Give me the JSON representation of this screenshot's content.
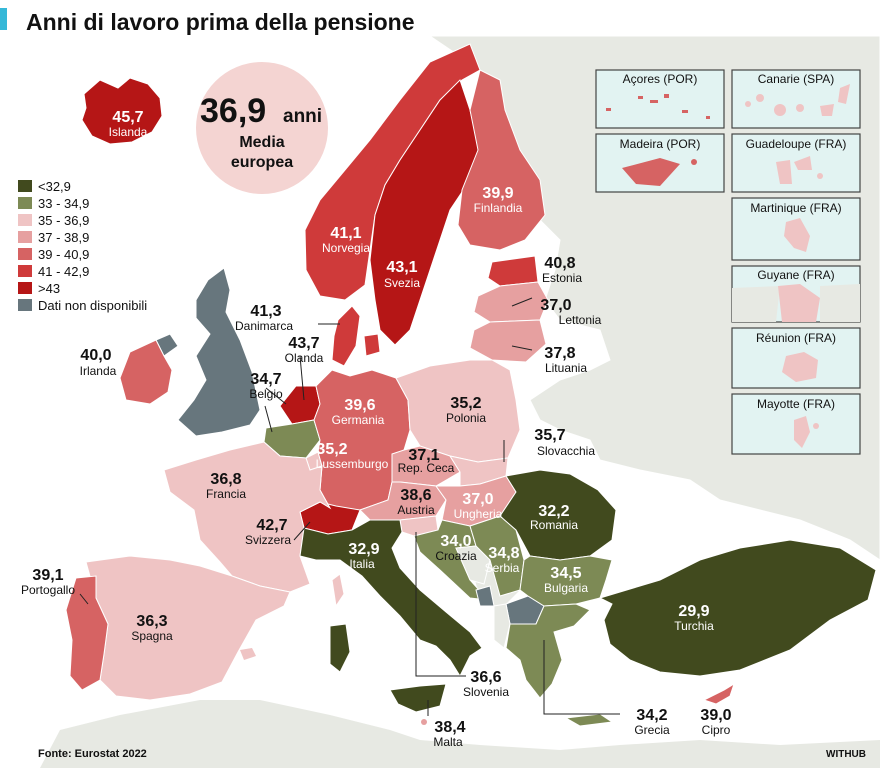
{
  "title": "Anni di lavoro prima della pensione",
  "average": {
    "value": "36,9",
    "unit": "anni",
    "label_line1": "Media",
    "label_line2": "europea"
  },
  "legend": [
    {
      "label": "<32,9",
      "color": "#414a1e"
    },
    {
      "label": "33 - 34,9",
      "color": "#7d8a55"
    },
    {
      "label": "35 - 36,9",
      "color": "#efc4c4"
    },
    {
      "label": "37 - 38,9",
      "color": "#e6a0a0"
    },
    {
      "label": "39 - 40,9",
      "color": "#d66363"
    },
    {
      "label": "41 - 42,9",
      "color": "#cf3a3a"
    },
    {
      "label": ">43",
      "color": "#b51616"
    },
    {
      "label": "Dati non disponibili",
      "color": "#67767d"
    }
  ],
  "countries": [
    {
      "id": "islanda",
      "name": "Islanda",
      "value": "45,7"
    },
    {
      "id": "norvegia",
      "name": "Norvegia",
      "value": "41,1"
    },
    {
      "id": "svezia",
      "name": "Svezia",
      "value": "43,1"
    },
    {
      "id": "finlandia",
      "name": "Finlandia",
      "value": "39,9"
    },
    {
      "id": "estonia",
      "name": "Estonia",
      "value": "40,8"
    },
    {
      "id": "lettonia",
      "name": "Lettonia",
      "value": "37,0"
    },
    {
      "id": "lituania",
      "name": "Lituania",
      "value": "37,8"
    },
    {
      "id": "danimarca",
      "name": "Danimarca",
      "value": "41,3"
    },
    {
      "id": "irlanda",
      "name": "Irlanda",
      "value": "40,0"
    },
    {
      "id": "olanda",
      "name": "Olanda",
      "value": "43,7"
    },
    {
      "id": "belgio",
      "name": "Belgio",
      "value": "34,7"
    },
    {
      "id": "germania",
      "name": "Germania",
      "value": "39,6"
    },
    {
      "id": "polonia",
      "name": "Polonia",
      "value": "35,2"
    },
    {
      "id": "lussemburgo",
      "name": "Lussemburgo",
      "value": "35,2"
    },
    {
      "id": "rep-ceca",
      "name": "Rep. Ceca",
      "value": "37,1"
    },
    {
      "id": "slovacchia",
      "name": "Slovacchia",
      "value": "35,7"
    },
    {
      "id": "francia",
      "name": "Francia",
      "value": "36,8"
    },
    {
      "id": "austria",
      "name": "Austria",
      "value": "38,6"
    },
    {
      "id": "ungheria",
      "name": "Ungheria",
      "value": "37,0"
    },
    {
      "id": "romania",
      "name": "Romania",
      "value": "32,2"
    },
    {
      "id": "svizzera",
      "name": "Svizzera",
      "value": "42,7"
    },
    {
      "id": "italia",
      "name": "Italia",
      "value": "32,9"
    },
    {
      "id": "croazia",
      "name": "Croazia",
      "value": "34,0"
    },
    {
      "id": "serbia",
      "name": "Serbia",
      "value": "34,8"
    },
    {
      "id": "bulgaria",
      "name": "Bulgaria",
      "value": "34,5"
    },
    {
      "id": "portogallo",
      "name": "Portogallo",
      "value": "39,1"
    },
    {
      "id": "spagna",
      "name": "Spagna",
      "value": "36,3"
    },
    {
      "id": "turchia",
      "name": "Turchia",
      "value": "29,9"
    },
    {
      "id": "slovenia",
      "name": "Slovenia",
      "value": "36,6"
    },
    {
      "id": "grecia",
      "name": "Grecia",
      "value": "34,2"
    },
    {
      "id": "cipro",
      "name": "Cipro",
      "value": "39,0"
    },
    {
      "id": "malta",
      "name": "Malta",
      "value": "38,4"
    }
  ],
  "insets": [
    {
      "id": "acores",
      "name": "Açores (POR)"
    },
    {
      "id": "canarie",
      "name": "Canarie (SPA)"
    },
    {
      "id": "madeira",
      "name": "Madeira (POR)"
    },
    {
      "id": "guadeloupe",
      "name": "Guadeloupe (FRA)"
    },
    {
      "id": "martinique",
      "name": "Martinique (FRA)"
    },
    {
      "id": "guyane",
      "name": "Guyane (FRA)"
    },
    {
      "id": "reunion",
      "name": "Réunion (FRA)"
    },
    {
      "id": "mayotte",
      "name": "Mayotte (FRA)"
    }
  ],
  "source": "Fonte: Eurostat 2022",
  "credit": "WITHUB"
}
